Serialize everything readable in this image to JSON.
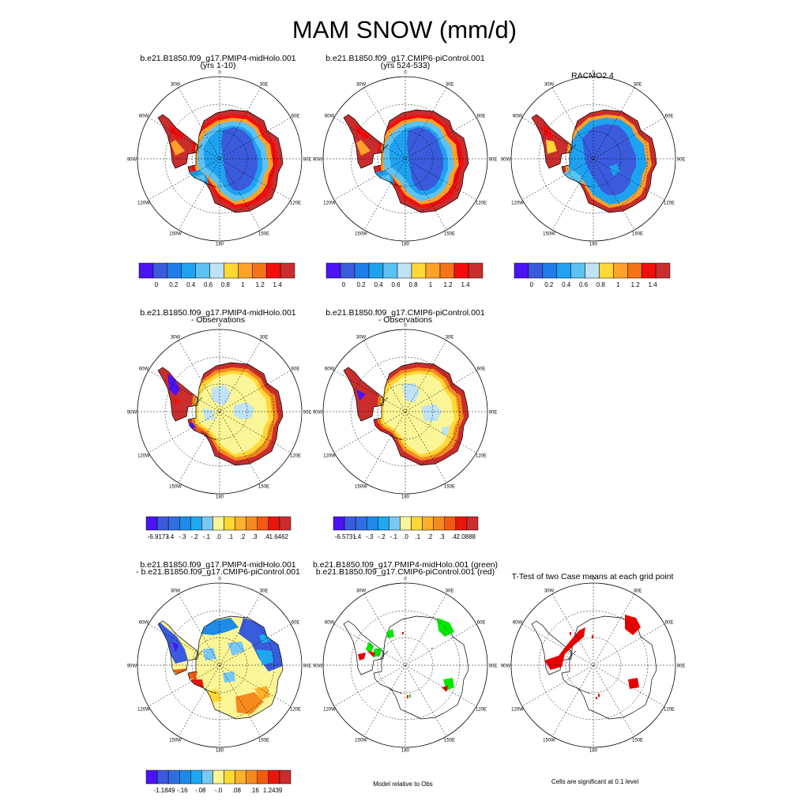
{
  "figure": {
    "title": "MAM SNOW (mm/d)"
  },
  "panels": [
    {
      "id": "p1",
      "kind": "field",
      "field": "model",
      "lines": [
        "b.e21.B1850.f09_g17.PMIP4-midHolo.001",
        "(yrs 1-10)"
      ]
    },
    {
      "id": "p2",
      "kind": "field",
      "field": "model",
      "lines": [
        "b.e21.B1850.f09_g17.CMIP6-piControl.001",
        "(yrs 524-533)"
      ]
    },
    {
      "id": "p3",
      "kind": "field",
      "field": "obs",
      "lines": [
        "RACMO2.4"
      ]
    },
    {
      "id": "p4",
      "kind": "field",
      "field": "diff",
      "lines": [
        "b.e21.B1850.f09_g17.PMIP4-midHolo.001",
        "- Observations"
      ]
    },
    {
      "id": "p5",
      "kind": "field",
      "field": "diff2",
      "lines": [
        "b.e21.B1850.f09_g17.CMIP6-piControl.001",
        "- Observations"
      ]
    },
    {
      "id": "p6",
      "kind": "field",
      "field": "casediff",
      "lines": [
        "b.e21.B1850.f09_g17.PMIP4-midHolo.001",
        "- b.e21.B1850.f09_g17.CMIP6-piControl.001"
      ]
    },
    {
      "id": "p7",
      "kind": "signif",
      "lines": [
        "b.e21.B1850.f09_g17.PMIP4-midHolo.001 (green)",
        "b.e21.B1850.f09_g17.CMIP6-piControl.001 (red)"
      ],
      "note": "Model relative to Obs"
    },
    {
      "id": "p8",
      "kind": "ttest",
      "lines": [
        "T-Test of two Case means at each grid point"
      ],
      "note": "Cells are significant at 0.1 level"
    }
  ],
  "map_labels": {
    "lon_0": "0",
    "lon_30e": "30E",
    "lon_60e": "60E",
    "lon_90e": "90E",
    "lon_120e": "120E",
    "lon_150e": "150E",
    "lon_180": "180",
    "lon_150w": "150W",
    "lon_120w": "120W",
    "lon_90w": "90W",
    "lon_60w": "60W",
    "lon_30w": "30W"
  },
  "colorbars": {
    "absolute": {
      "colors": [
        "#4a14f4",
        "#3a5bdc",
        "#1f7ee8",
        "#1ea2f0",
        "#5cc2f2",
        "#bfe3f5",
        "#ffd836",
        "#ffa229",
        "#f57319",
        "#f40d0d",
        "#c92d2d"
      ],
      "labels": [
        "0",
        "0.2",
        "0.4",
        "0.6",
        "0.8",
        "1",
        "1.2",
        "1.4"
      ]
    },
    "diff_midholo": {
      "colors": [
        "#4a14f4",
        "#3a5bdc",
        "#2f6fe0",
        "#1f8ae8",
        "#1ea8f0",
        "#79c8f2",
        "#faf596",
        "#ffd836",
        "#ffb02c",
        "#f58a1f",
        "#f25a12",
        "#e8170d",
        "#c92d2d"
      ],
      "labels": [
        "-6.9173",
        "-.4",
        "-.3",
        "-.2",
        "-.1",
        ".0",
        ".1",
        ".2",
        ".3",
        ".4",
        "1.6462"
      ]
    },
    "diff_picontrol": {
      "colors": [
        "#4a14f4",
        "#3a5bdc",
        "#2f6fe0",
        "#1f8ae8",
        "#1ea8f0",
        "#79c8f2",
        "#faf596",
        "#ffd836",
        "#ffb02c",
        "#f58a1f",
        "#f25a12",
        "#e8170d",
        "#c92d2d"
      ],
      "labels": [
        "-6.5731",
        "-.4",
        "-.3",
        "-.2",
        "-.1",
        ".0",
        ".1",
        ".2",
        ".3",
        ".4",
        "2.0888"
      ]
    },
    "case_diff": {
      "colors": [
        "#4a14f4",
        "#3a5bdc",
        "#2f6fe0",
        "#1f8ae8",
        "#1ea8f0",
        "#79c8f2",
        "#faf596",
        "#ffd836",
        "#ffb02c",
        "#f58a1f",
        "#f25a12",
        "#e8170d",
        "#c92d2d"
      ],
      "labels": [
        "-1.1849",
        "-.16",
        "-.08",
        "-.0",
        ".08",
        ".16",
        "1.2439"
      ]
    }
  },
  "chart_data": {
    "type": "heatmap",
    "title": "MAM SNOW (mm/d)",
    "units": "mm/d",
    "projection": "south polar stereographic",
    "panels": [
      {
        "name": "b.e21.B1850.f09_g17.PMIP4-midHolo.001 (yrs 1-10)",
        "levels": [
          0,
          0.2,
          0.4,
          0.6,
          0.8,
          1,
          1.2,
          1.4
        ]
      },
      {
        "name": "b.e21.B1850.f09_g17.CMIP6-piControl.001 (yrs 524-533)",
        "levels": [
          0,
          0.2,
          0.4,
          0.6,
          0.8,
          1,
          1.2,
          1.4
        ]
      },
      {
        "name": "RACMO2.4",
        "levels": [
          0,
          0.2,
          0.4,
          0.6,
          0.8,
          1,
          1.2,
          1.4
        ]
      },
      {
        "name": "PMIP4-midHolo - Observations",
        "min": -6.9173,
        "max": 1.6462,
        "levels": [
          -0.4,
          -0.3,
          -0.2,
          -0.1,
          0,
          0.1,
          0.2,
          0.3,
          0.4
        ]
      },
      {
        "name": "CMIP6-piControl - Observations",
        "min": -6.5731,
        "max": 2.0888,
        "levels": [
          -0.4,
          -0.3,
          -0.2,
          -0.1,
          0,
          0.1,
          0.2,
          0.3,
          0.4
        ]
      },
      {
        "name": "PMIP4-midHolo - CMIP6-piControl",
        "min": -1.1849,
        "max": 1.2439,
        "levels": [
          -0.16,
          -0.08,
          0,
          0.08,
          0.16
        ]
      }
    ]
  }
}
